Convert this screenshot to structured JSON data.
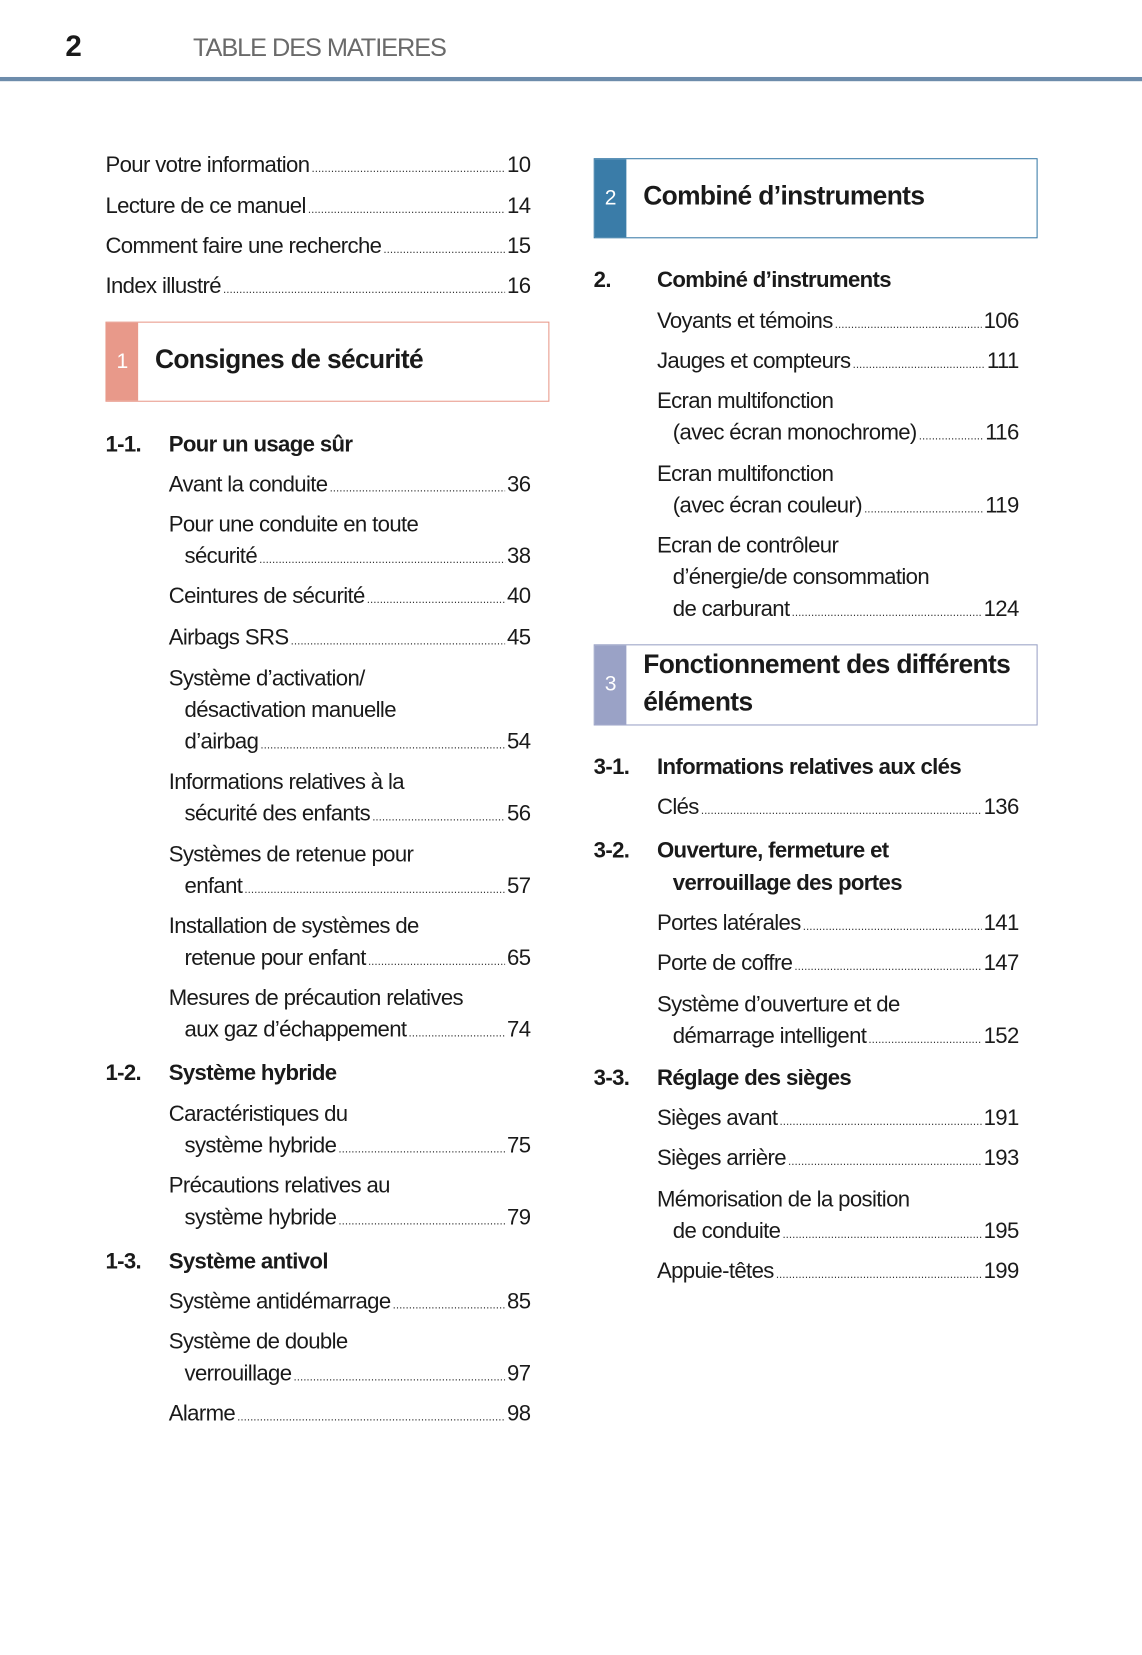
{
  "header": {
    "page_number": "2",
    "title": "TABLE DES MATIERES"
  },
  "left": {
    "intro": [
      {
        "lines": [
          "Pour votre information"
        ],
        "page": "10"
      },
      {
        "lines": [
          "Lecture de ce manuel"
        ],
        "page": "14"
      },
      {
        "lines": [
          "Comment faire une recherche"
        ],
        "page": "15"
      },
      {
        "lines": [
          "Index illustré"
        ],
        "page": "16"
      }
    ],
    "sections": [
      {
        "number": "1",
        "title_lines": [
          "Consignes de sécurité"
        ],
        "color": "#e8998a",
        "groups": [
          {
            "number": "1-1.",
            "title_lines": [
              "Pour un usage sûr"
            ],
            "entries": [
              {
                "lines": [
                  "Avant la conduite"
                ],
                "page": "36"
              },
              {
                "lines": [
                  "Pour une conduite en toute",
                  "sécurité"
                ],
                "page": "38"
              },
              {
                "lines": [
                  "Ceintures de sécurité"
                ],
                "page": "40"
              },
              {
                "lines": [
                  "Airbags SRS"
                ],
                "page": "45"
              },
              {
                "lines": [
                  "Système d’activation/",
                  "désactivation manuelle",
                  "d’airbag"
                ],
                "page": "54"
              },
              {
                "lines": [
                  "Informations relatives à la",
                  "sécurité des enfants"
                ],
                "page": "56"
              },
              {
                "lines": [
                  "Systèmes de retenue pour",
                  "enfant"
                ],
                "page": "57"
              },
              {
                "lines": [
                  "Installation de systèmes de",
                  "retenue pour enfant"
                ],
                "page": "65"
              },
              {
                "lines": [
                  "Mesures de précaution relatives",
                  "aux gaz d’échappement"
                ],
                "page": "74"
              }
            ]
          },
          {
            "number": "1-2.",
            "title_lines": [
              "Système hybride"
            ],
            "entries": [
              {
                "lines": [
                  "Caractéristiques du",
                  "système hybride"
                ],
                "page": "75"
              },
              {
                "lines": [
                  "Précautions relatives au",
                  "système hybride"
                ],
                "page": "79"
              }
            ]
          },
          {
            "number": "1-3.",
            "title_lines": [
              "Système antivol"
            ],
            "entries": [
              {
                "lines": [
                  "Système antidémarrage"
                ],
                "page": "85"
              },
              {
                "lines": [
                  "Système de double",
                  "verrouillage"
                ],
                "page": "97"
              },
              {
                "lines": [
                  "Alarme"
                ],
                "page": "98"
              }
            ]
          }
        ]
      }
    ]
  },
  "right": {
    "intro": [],
    "sections": [
      {
        "number": "2",
        "title_lines": [
          "Combiné d’instruments"
        ],
        "color": "#3a7ca8",
        "groups": [
          {
            "number": "2.",
            "title_lines": [
              "Combiné d’instruments"
            ],
            "entries": [
              {
                "lines": [
                  "Voyants et témoins"
                ],
                "page": "106"
              },
              {
                "lines": [
                  "Jauges et compteurs"
                ],
                "page": "111"
              },
              {
                "lines": [
                  "Ecran multifonction",
                  "(avec écran monochrome)"
                ],
                "page": "116"
              },
              {
                "lines": [
                  "Ecran multifonction",
                  "(avec écran couleur)"
                ],
                "page": "119"
              },
              {
                "lines": [
                  "Ecran de contrôleur",
                  "d’énergie/de consommation",
                  "de carburant"
                ],
                "page": "124"
              }
            ]
          }
        ]
      },
      {
        "number": "3",
        "title_lines": [
          "Fonctionnement des différents",
          "éléments"
        ],
        "color": "#9aa2c6",
        "groups": [
          {
            "number": "3-1.",
            "title_lines": [
              "Informations relatives aux clés"
            ],
            "entries": [
              {
                "lines": [
                  "Clés"
                ],
                "page": "136"
              }
            ]
          },
          {
            "number": "3-2.",
            "title_lines": [
              "Ouverture, fermeture et",
              "verrouillage des portes"
            ],
            "entries": [
              {
                "lines": [
                  "Portes latérales"
                ],
                "page": "141"
              },
              {
                "lines": [
                  "Porte de coffre"
                ],
                "page": "147"
              },
              {
                "lines": [
                  "Système d’ouverture et de",
                  "démarrage intelligent"
                ],
                "page": "152"
              }
            ]
          },
          {
            "number": "3-3.",
            "title_lines": [
              "Réglage des sièges"
            ],
            "entries": [
              {
                "lines": [
                  "Sièges avant"
                ],
                "page": "191"
              },
              {
                "lines": [
                  "Sièges arrière"
                ],
                "page": "193"
              },
              {
                "lines": [
                  "Mémorisation de la position",
                  "de conduite"
                ],
                "page": "195"
              },
              {
                "lines": [
                  "Appuie-têtes"
                ],
                "page": "199"
              }
            ]
          }
        ]
      }
    ]
  }
}
